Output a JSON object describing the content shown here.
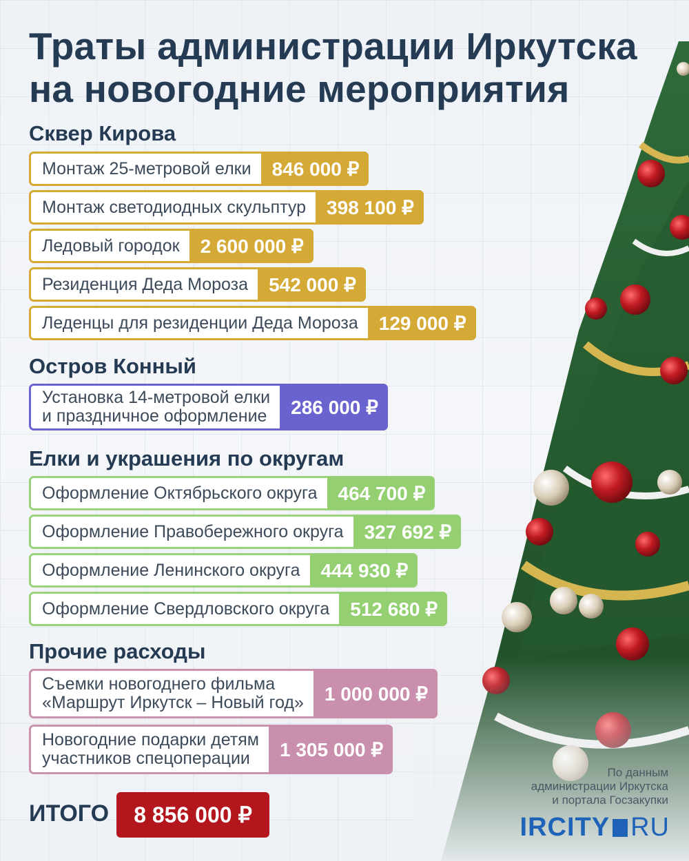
{
  "title_line1": "Траты администрации Иркутска",
  "title_line2": "на новогодние мероприятия",
  "sections": [
    {
      "title": "Сквер Кирова",
      "items": [
        {
          "label": "Монтаж 25-метровой елки",
          "amount": "846 000 ₽"
        },
        {
          "label": "Монтаж светодиодных скульптур",
          "amount": "398 100 ₽"
        },
        {
          "label": "Ледовый городок",
          "amount": "2 600 000 ₽"
        },
        {
          "label": "Резиденция Деда Мороза",
          "amount": "542 000 ₽"
        },
        {
          "label": "Леденцы для резиденции Деда Мороза",
          "amount": "129 000 ₽"
        }
      ]
    },
    {
      "title": "Остров Конный",
      "items": [
        {
          "label_line1": "Установка 14-метровой елки",
          "label_line2": "и праздничное оформление",
          "amount": "286 000 ₽"
        }
      ]
    },
    {
      "title": "Елки и украшения по округам",
      "items": [
        {
          "label": "Оформление Октябрьского округа",
          "amount": "464 700 ₽"
        },
        {
          "label": "Оформление Правобережного округа",
          "amount": "327 692 ₽"
        },
        {
          "label": "Оформление Ленинского округа",
          "amount": "444 930 ₽"
        },
        {
          "label": "Оформление Свердловского округа",
          "amount": "512 680 ₽"
        }
      ]
    },
    {
      "title": "Прочие расходы",
      "items": [
        {
          "label_line1": "Съемки новогоднего фильма",
          "label_line2": "«Маршрут Иркутск – Новый год»",
          "amount": "1 000 000 ₽"
        },
        {
          "label_line1": "Новогодние подарки детям",
          "label_line2": "участников спецоперации",
          "amount": "1 305 000 ₽"
        }
      ]
    }
  ],
  "total_label": "ИТОГО",
  "total_amount": "8 856 000 ₽",
  "source_line1": "По данным",
  "source_line2": "администрации Иркутска",
  "source_line3": "и портала Госзакупки",
  "logo_left": "IRCITY",
  "logo_right": "RU",
  "colors": {
    "title": "#243b53",
    "kirov": "#d4a935",
    "konny": "#6a63cf",
    "okruga": "#94cf72",
    "other": "#c98fac",
    "total": "#b3161c",
    "logo": "#1f63b8"
  }
}
